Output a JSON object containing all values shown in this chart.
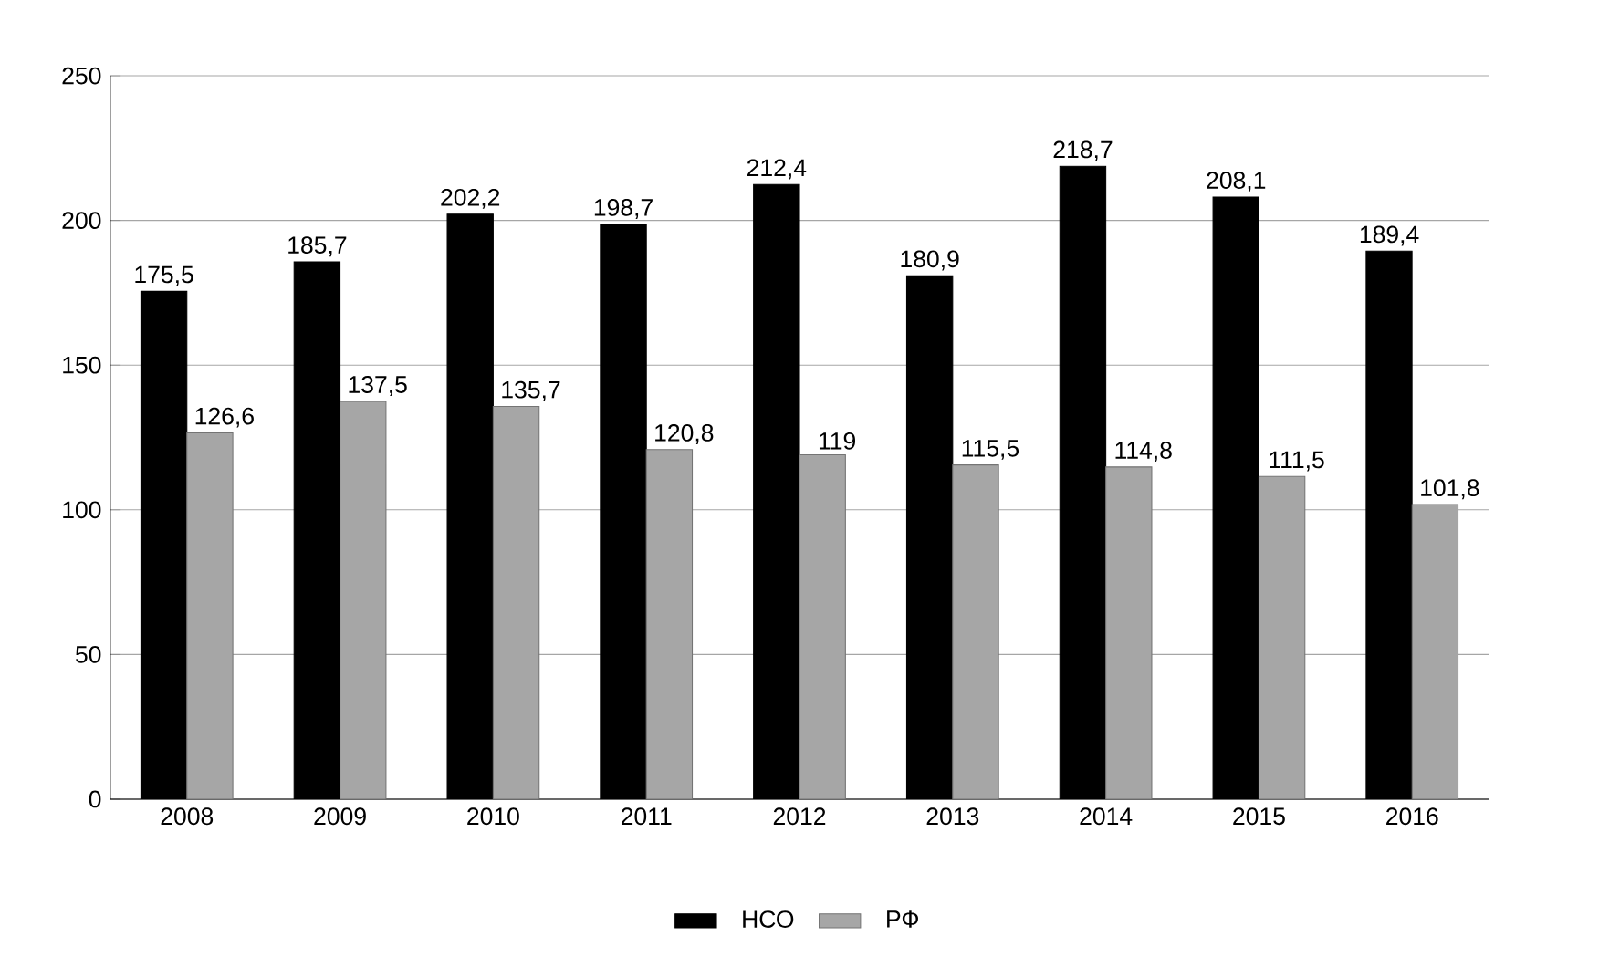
{
  "chart_data": {
    "type": "bar",
    "categories": [
      "2008",
      "2009",
      "2010",
      "2011",
      "2012",
      "2013",
      "2014",
      "2015",
      "2016"
    ],
    "series": [
      {
        "name": "НСО",
        "color": "#000000",
        "values": [
          175.5,
          185.7,
          202.2,
          198.7,
          212.4,
          180.9,
          218.7,
          208.1,
          189.4
        ],
        "value_labels": [
          "175,5",
          "185,7",
          "202,2",
          "198,7",
          "212,4",
          "180,9",
          "218,7",
          "208,1",
          "189,4"
        ]
      },
      {
        "name": "РФ",
        "color": "#a6a6a6",
        "values": [
          126.6,
          137.5,
          135.7,
          120.8,
          119,
          115.5,
          114.8,
          111.5,
          101.8
        ],
        "value_labels": [
          "126,6",
          "137,5",
          "135,7",
          "120,8",
          "119",
          "115,5",
          "114,8",
          "111,5",
          "101,8"
        ]
      }
    ],
    "ylim": [
      0,
      250
    ],
    "yticks": [
      0,
      50,
      100,
      150,
      200,
      250
    ],
    "grid": "y",
    "legend": "bottom"
  }
}
